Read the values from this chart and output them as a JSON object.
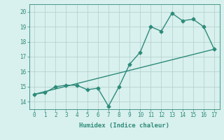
{
  "xlabel": "Humidex (Indice chaleur)",
  "x": [
    0,
    1,
    2,
    3,
    4,
    5,
    6,
    7,
    8,
    9,
    10,
    11,
    12,
    13,
    14,
    15,
    16,
    17
  ],
  "y_curve": [
    14.5,
    14.6,
    15.0,
    15.1,
    15.1,
    14.8,
    14.9,
    13.7,
    15.0,
    16.5,
    17.3,
    19.0,
    18.7,
    19.9,
    19.4,
    19.5,
    19.0,
    17.5
  ],
  "y_line_start": 14.5,
  "y_line_end": 17.5,
  "ylim": [
    13.5,
    20.5
  ],
  "xlim": [
    -0.5,
    17.5
  ],
  "yticks": [
    14,
    15,
    16,
    17,
    18,
    19,
    20
  ],
  "xticks": [
    0,
    1,
    2,
    3,
    4,
    5,
    6,
    7,
    8,
    9,
    10,
    11,
    12,
    13,
    14,
    15,
    16,
    17
  ],
  "line_color": "#2e8b7a",
  "bg_color": "#d8f0ee",
  "grid_color": "#b0ceca",
  "markersize": 2.5,
  "linewidth": 1.0
}
